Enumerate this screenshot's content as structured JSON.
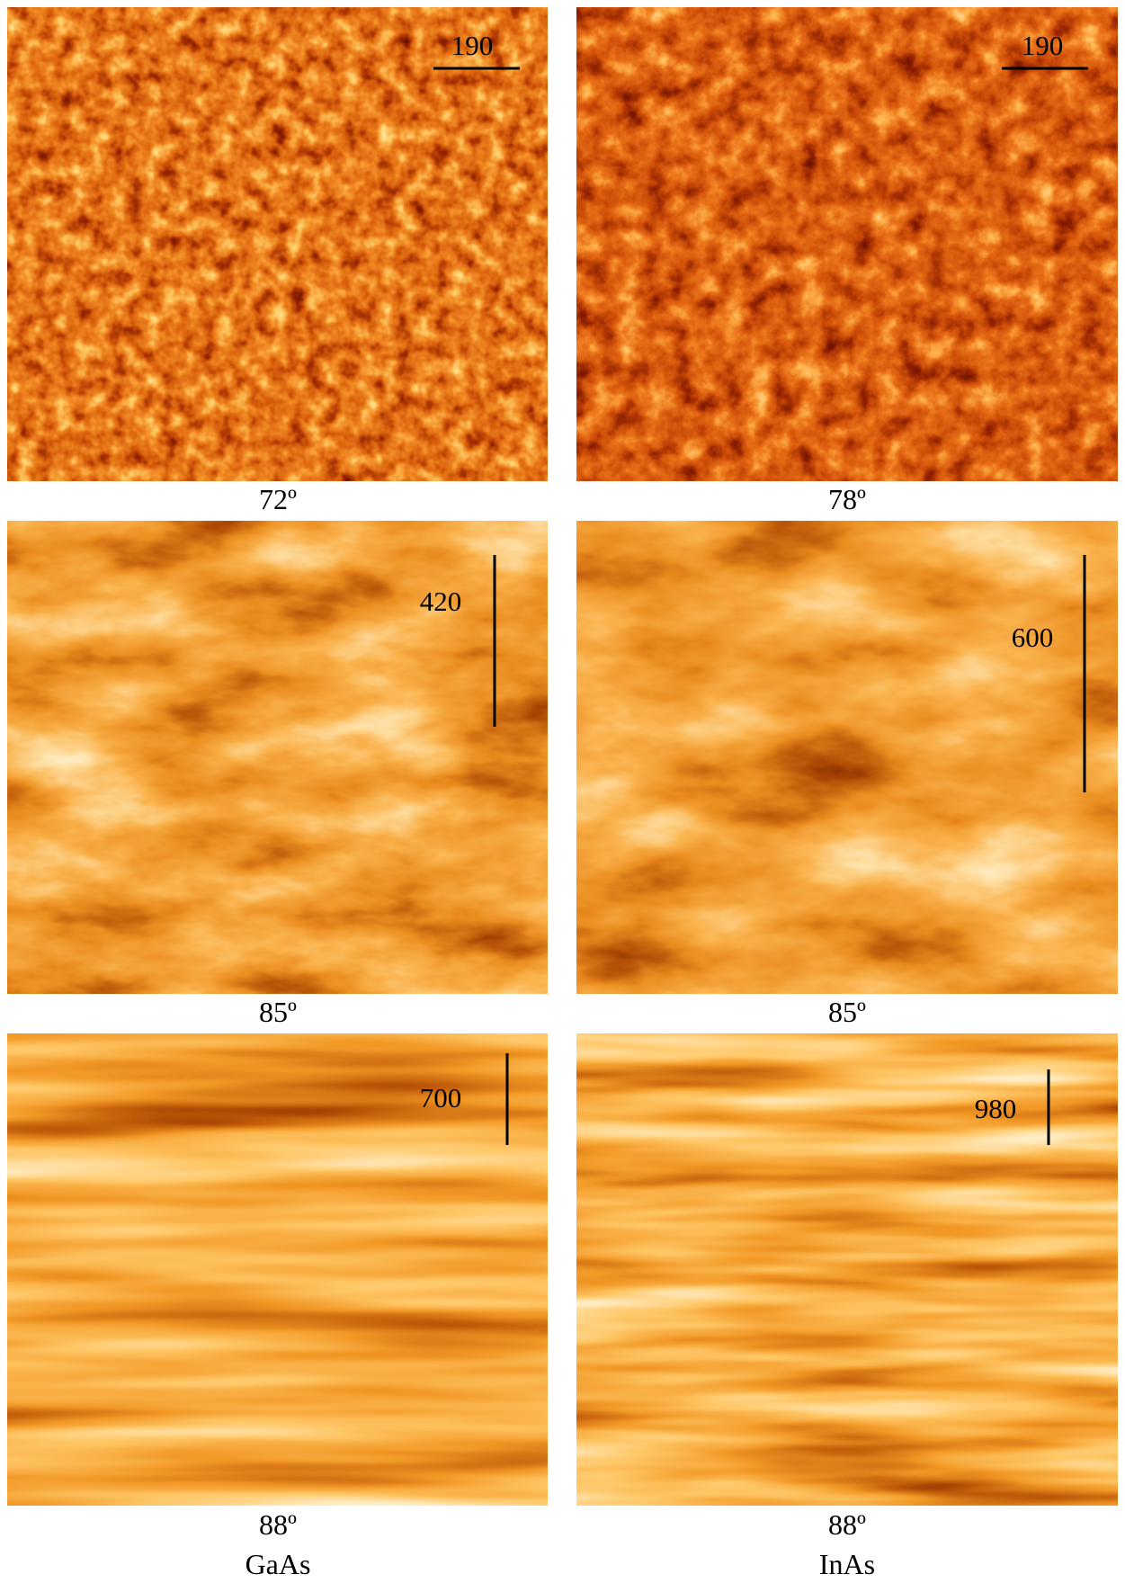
{
  "panels": [
    {
      "angle": "72º",
      "scale_bar": "190"
    },
    {
      "angle": "78º",
      "scale_bar": "190"
    },
    {
      "angle": "85º",
      "scale_bar": "420"
    },
    {
      "angle": "85º",
      "scale_bar": "600"
    },
    {
      "angle": "88º",
      "scale_bar": "700"
    },
    {
      "angle": "88º",
      "scale_bar": "980"
    }
  ],
  "columns": [
    "GaAs",
    "InAs"
  ]
}
